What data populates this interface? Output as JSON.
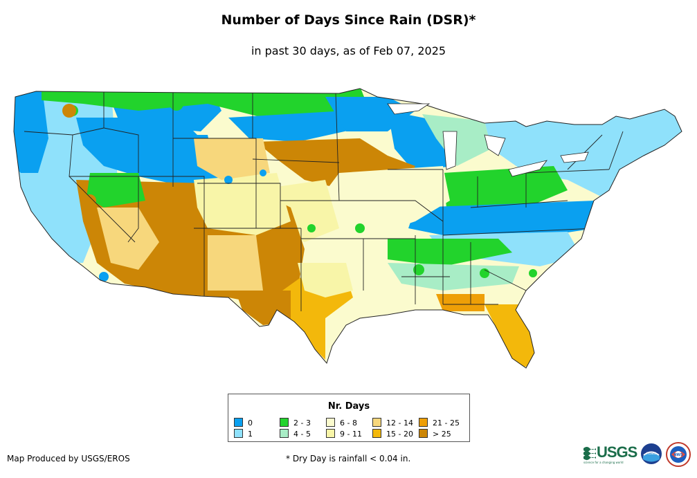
{
  "map": {
    "title": "Number of Days Since Rain (DSR)*",
    "subtitle": "in past 30 days, as of Feb 07, 2025",
    "region": "Contiguous United States"
  },
  "legend": {
    "title": "Nr. Days",
    "classes": [
      {
        "label": "0",
        "color": "#0aa0f0"
      },
      {
        "label": "1",
        "color": "#8fe1fb"
      },
      {
        "label": "2 - 3",
        "color": "#22d32c"
      },
      {
        "label": "4 - 5",
        "color": "#a8edc6"
      },
      {
        "label": "6 - 8",
        "color": "#fbfbce"
      },
      {
        "label": "9 - 11",
        "color": "#f8f5a8"
      },
      {
        "label": "12 - 14",
        "color": "#f7d77c"
      },
      {
        "label": "15 - 20",
        "color": "#f3b80b"
      },
      {
        "label": "21 - 25",
        "color": "#ee9f07"
      },
      {
        "label": "> 25",
        "color": "#cc8606"
      }
    ]
  },
  "footer": {
    "producer": "Map Produced by USGS/EROS",
    "footnote": "* Dry Day is rainfall < 0.04 in."
  },
  "logos": {
    "usgs": "USGS",
    "usgs_tagline": "science for a changing world",
    "noaa": "noaa",
    "nws": "NWS"
  }
}
